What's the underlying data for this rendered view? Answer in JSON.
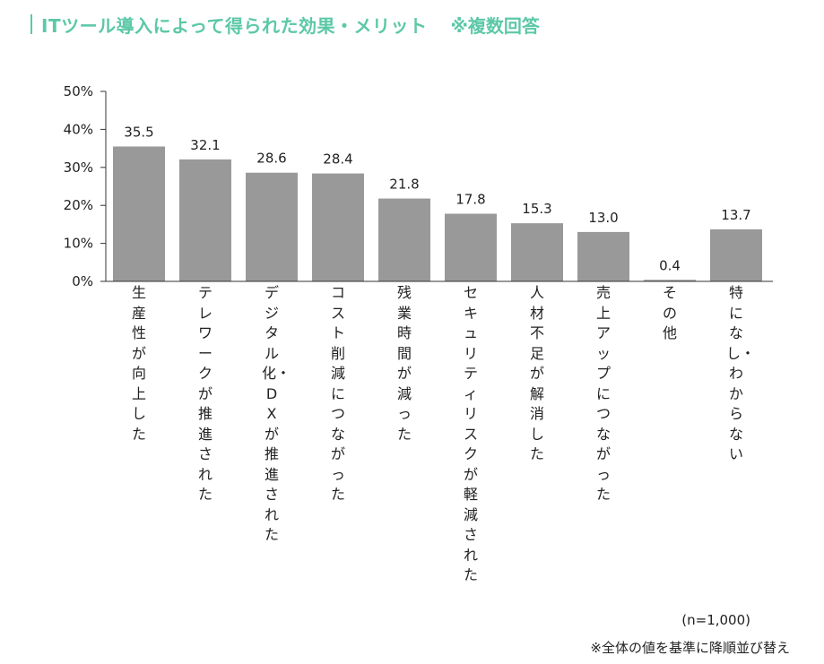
{
  "title": {
    "text": "ITツール導入によって得られた効果・メリット",
    "note": "※複数回答"
  },
  "colors": {
    "accent": "#5cc8a7",
    "bar": "#999999",
    "axis": "#333333"
  },
  "chart_data": {
    "type": "bar",
    "categories": [
      "生産性が向上した",
      "テレワークが推進された",
      "デジタル化・DXが推進された",
      "コスト削減につながった",
      "残業時間が減った",
      "セキュリティリスクが軽減された",
      "人材不足が解消した",
      "売上アップにつながった",
      "その他",
      "特になし・わからない"
    ],
    "values": [
      35.5,
      32.1,
      28.6,
      28.4,
      21.8,
      17.8,
      15.3,
      13.0,
      0.4,
      13.7
    ],
    "value_labels": [
      "35.5",
      "32.1",
      "28.6",
      "28.4",
      "21.8",
      "17.8",
      "15.3",
      "13.0",
      "0.4",
      "13.7"
    ],
    "yticks": [
      "0%",
      "10%",
      "20%",
      "30%",
      "40%",
      "50%"
    ],
    "ylim": [
      0,
      50
    ],
    "grid": false
  },
  "notes": {
    "sample": "(n=1,000)",
    "sort": "※全体の値を基準に降順並び替え"
  }
}
